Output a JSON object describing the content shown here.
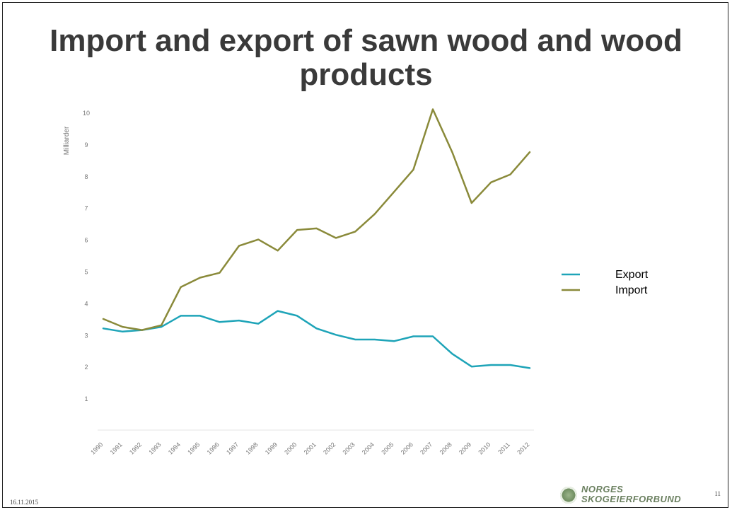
{
  "slide": {
    "title": "Import and export of sawn wood and wood products",
    "footer_date": "16.11.2015",
    "page_number": "11",
    "logo": {
      "line1": "NORGES",
      "line2": "SKOGEIERFORBUND"
    }
  },
  "chart_data": {
    "type": "line",
    "title": "",
    "xlabel": "",
    "ylabel": "Milliarder",
    "categories": [
      "1990",
      "1991",
      "1992",
      "1993",
      "1994",
      "1995",
      "1996",
      "1997",
      "1998",
      "1999",
      "2000",
      "2001",
      "2002",
      "2003",
      "2004",
      "2005",
      "2006",
      "2007",
      "2008",
      "2009",
      "2010",
      "2011",
      "2012"
    ],
    "y_ticks": [
      1,
      2,
      3,
      4,
      5,
      6,
      7,
      8,
      9,
      10
    ],
    "ylim": [
      0,
      10
    ],
    "grid": false,
    "legend_placement": "right",
    "series": [
      {
        "name": "Export",
        "color": "#1ea4b8",
        "values": [
          3.2,
          3.1,
          3.15,
          3.25,
          3.6,
          3.6,
          3.4,
          3.45,
          3.35,
          3.75,
          3.6,
          3.2,
          3.0,
          2.85,
          2.85,
          2.8,
          2.95,
          2.95,
          2.4,
          2.0,
          2.05,
          2.05,
          1.95
        ]
      },
      {
        "name": "Import",
        "color": "#8a8a3a",
        "values": [
          3.5,
          3.25,
          3.15,
          3.3,
          4.5,
          4.8,
          4.95,
          5.8,
          6.0,
          5.65,
          6.3,
          6.35,
          6.05,
          6.25,
          6.8,
          7.5,
          8.2,
          10.1,
          8.75,
          7.15,
          7.8,
          8.05,
          8.75
        ]
      }
    ]
  }
}
